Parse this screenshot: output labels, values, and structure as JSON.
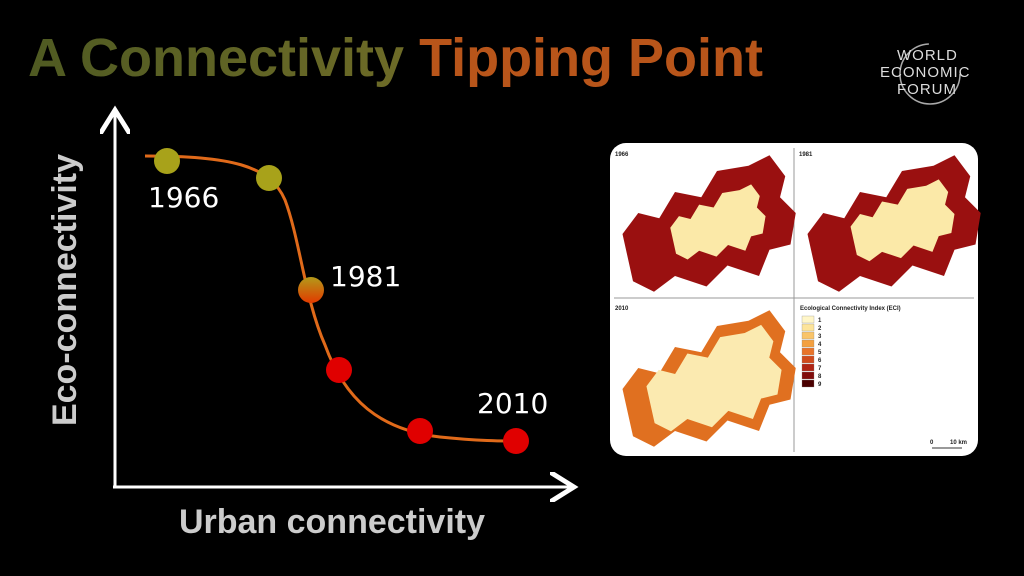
{
  "header": {
    "title_part1": "A Connectivity",
    "title_part2": "Tipping Point",
    "logo": [
      "WORLD",
      "ECONOMIC",
      "FORUM"
    ]
  },
  "diagram": {
    "y_axis_label": "Eco-connectivity",
    "x_axis_label": "Urban connectivity",
    "point_labels": [
      "1966",
      "1981",
      "2010"
    ]
  },
  "map_panel": {
    "panels": [
      "1966",
      "1981",
      "2010"
    ],
    "legend_title": "Ecological Connectivity Index (ECI)",
    "legend_items": [
      "1",
      "2",
      "3",
      "4",
      "5",
      "6",
      "7",
      "8",
      "9"
    ],
    "scale": [
      "0",
      "10 km"
    ]
  }
}
